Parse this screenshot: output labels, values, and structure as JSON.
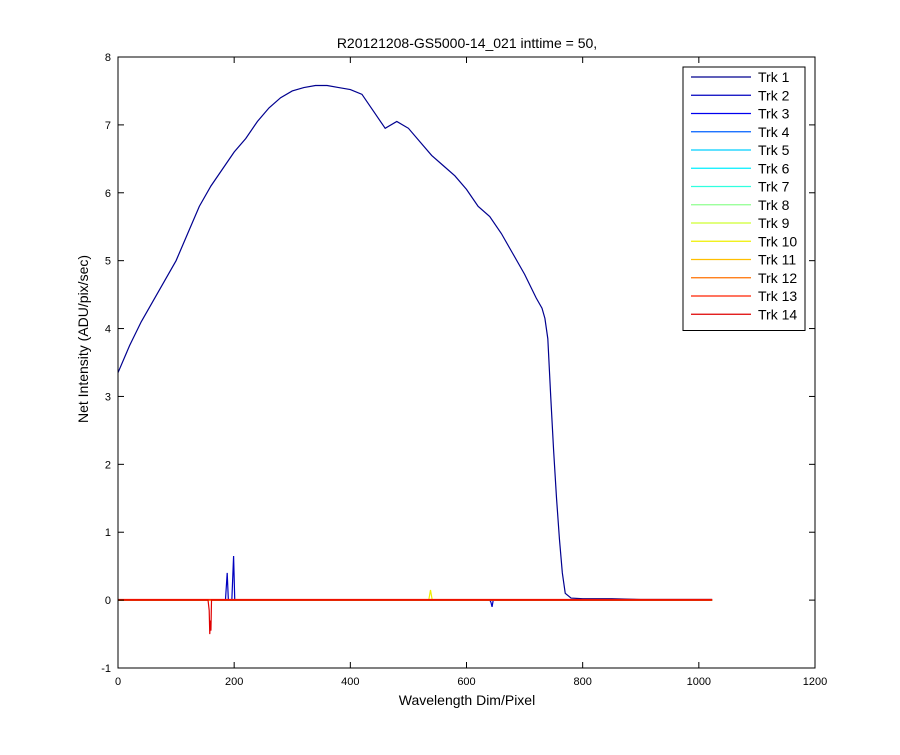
{
  "chart_data": {
    "type": "line",
    "title": "R20121208-GS5000-14_021 inttime = 50,",
    "xlabel": "Wavelength Dim/Pixel",
    "ylabel": "Net Intensity (ADU/pix/sec)",
    "xlim": [
      0,
      1200
    ],
    "ylim": [
      -1,
      8
    ],
    "x_ticks": [
      "0",
      "200",
      "400",
      "600",
      "800",
      "1000",
      "1200"
    ],
    "y_ticks": [
      "-1",
      "0",
      "1",
      "2",
      "3",
      "4",
      "5",
      "6",
      "7",
      "8"
    ],
    "grid": false,
    "legend_position": "top-right",
    "series": [
      {
        "name": "Trk 1",
        "color": "#00008F",
        "x": [
          0,
          20,
          40,
          60,
          80,
          100,
          120,
          140,
          160,
          180,
          200,
          220,
          240,
          260,
          280,
          300,
          320,
          340,
          360,
          380,
          400,
          420,
          440,
          460,
          480,
          500,
          520,
          540,
          560,
          580,
          600,
          620,
          640,
          660,
          680,
          700,
          720,
          730,
          735,
          740,
          745,
          750,
          755,
          760,
          765,
          770,
          780,
          800,
          850,
          900,
          950,
          1000,
          1023
        ],
        "values": [
          3.35,
          3.75,
          4.1,
          4.4,
          4.7,
          5.0,
          5.4,
          5.8,
          6.1,
          6.35,
          6.6,
          6.8,
          7.05,
          7.25,
          7.4,
          7.5,
          7.55,
          7.58,
          7.58,
          7.55,
          7.52,
          7.45,
          7.2,
          6.95,
          7.05,
          6.95,
          6.75,
          6.55,
          6.4,
          6.25,
          6.05,
          5.8,
          5.65,
          5.4,
          5.1,
          4.8,
          4.45,
          4.3,
          4.15,
          3.85,
          3.0,
          2.2,
          1.5,
          0.9,
          0.4,
          0.1,
          0.03,
          0.02,
          0.02,
          0.01,
          0.01,
          0.01,
          0.01
        ]
      },
      {
        "name": "Trk 2",
        "color": "#0000BF",
        "x": [
          0,
          180,
          185,
          188,
          190,
          193,
          196,
          199,
          201,
          204,
          207,
          300,
          500,
          640,
          642,
          644,
          646,
          648,
          800,
          1023
        ],
        "values": [
          0.0,
          0.0,
          0.0,
          0.4,
          0.0,
          0.0,
          0.0,
          0.65,
          0.0,
          0.0,
          0.0,
          0.0,
          0.0,
          0.0,
          -0.03,
          -0.1,
          0.0,
          0.0,
          0.0,
          0.0
        ]
      },
      {
        "name": "Trk 3",
        "color": "#0000EF",
        "x": [
          0,
          1023
        ],
        "values": [
          0.0,
          0.0
        ]
      },
      {
        "name": "Trk 4",
        "color": "#0060FF",
        "x": [
          0,
          1023
        ],
        "values": [
          0.0,
          0.0
        ]
      },
      {
        "name": "Trk 5",
        "color": "#00CFFF",
        "x": [
          0,
          1023
        ],
        "values": [
          0.0,
          0.0
        ]
      },
      {
        "name": "Trk 6",
        "color": "#00EFFF",
        "x": [
          0,
          1023
        ],
        "values": [
          0.0,
          0.0
        ]
      },
      {
        "name": "Trk 7",
        "color": "#30FFDF",
        "x": [
          0,
          1023
        ],
        "values": [
          0.0,
          0.0
        ]
      },
      {
        "name": "Trk 8",
        "color": "#8FFF8F",
        "x": [
          0,
          1023
        ],
        "values": [
          0.0,
          0.0
        ]
      },
      {
        "name": "Trk 9",
        "color": "#CFFF30",
        "x": [
          0,
          1023
        ],
        "values": [
          0.0,
          0.0
        ]
      },
      {
        "name": "Trk 10",
        "color": "#EFEF00",
        "x": [
          0,
          530,
          535,
          538,
          541,
          545,
          1023
        ],
        "values": [
          0.0,
          0.0,
          0.0,
          0.15,
          0.0,
          0.0,
          0.0
        ]
      },
      {
        "name": "Trk 11",
        "color": "#FFBF00",
        "x": [
          0,
          1023
        ],
        "values": [
          0.0,
          0.0
        ]
      },
      {
        "name": "Trk 12",
        "color": "#FF7000",
        "x": [
          0,
          1023
        ],
        "values": [
          0.0,
          0.0
        ]
      },
      {
        "name": "Trk 13",
        "color": "#FF2000",
        "x": [
          0,
          1023
        ],
        "values": [
          0.01,
          0.01
        ]
      },
      {
        "name": "Trk 14",
        "color": "#DF0000",
        "x": [
          0,
          150,
          155,
          157,
          158,
          159,
          160,
          161,
          163,
          170,
          300,
          600,
          1023
        ],
        "values": [
          0.0,
          0.0,
          0.0,
          -0.15,
          -0.5,
          -0.3,
          -0.45,
          0.0,
          0.0,
          0.0,
          0.0,
          0.0,
          0.0
        ]
      }
    ]
  }
}
